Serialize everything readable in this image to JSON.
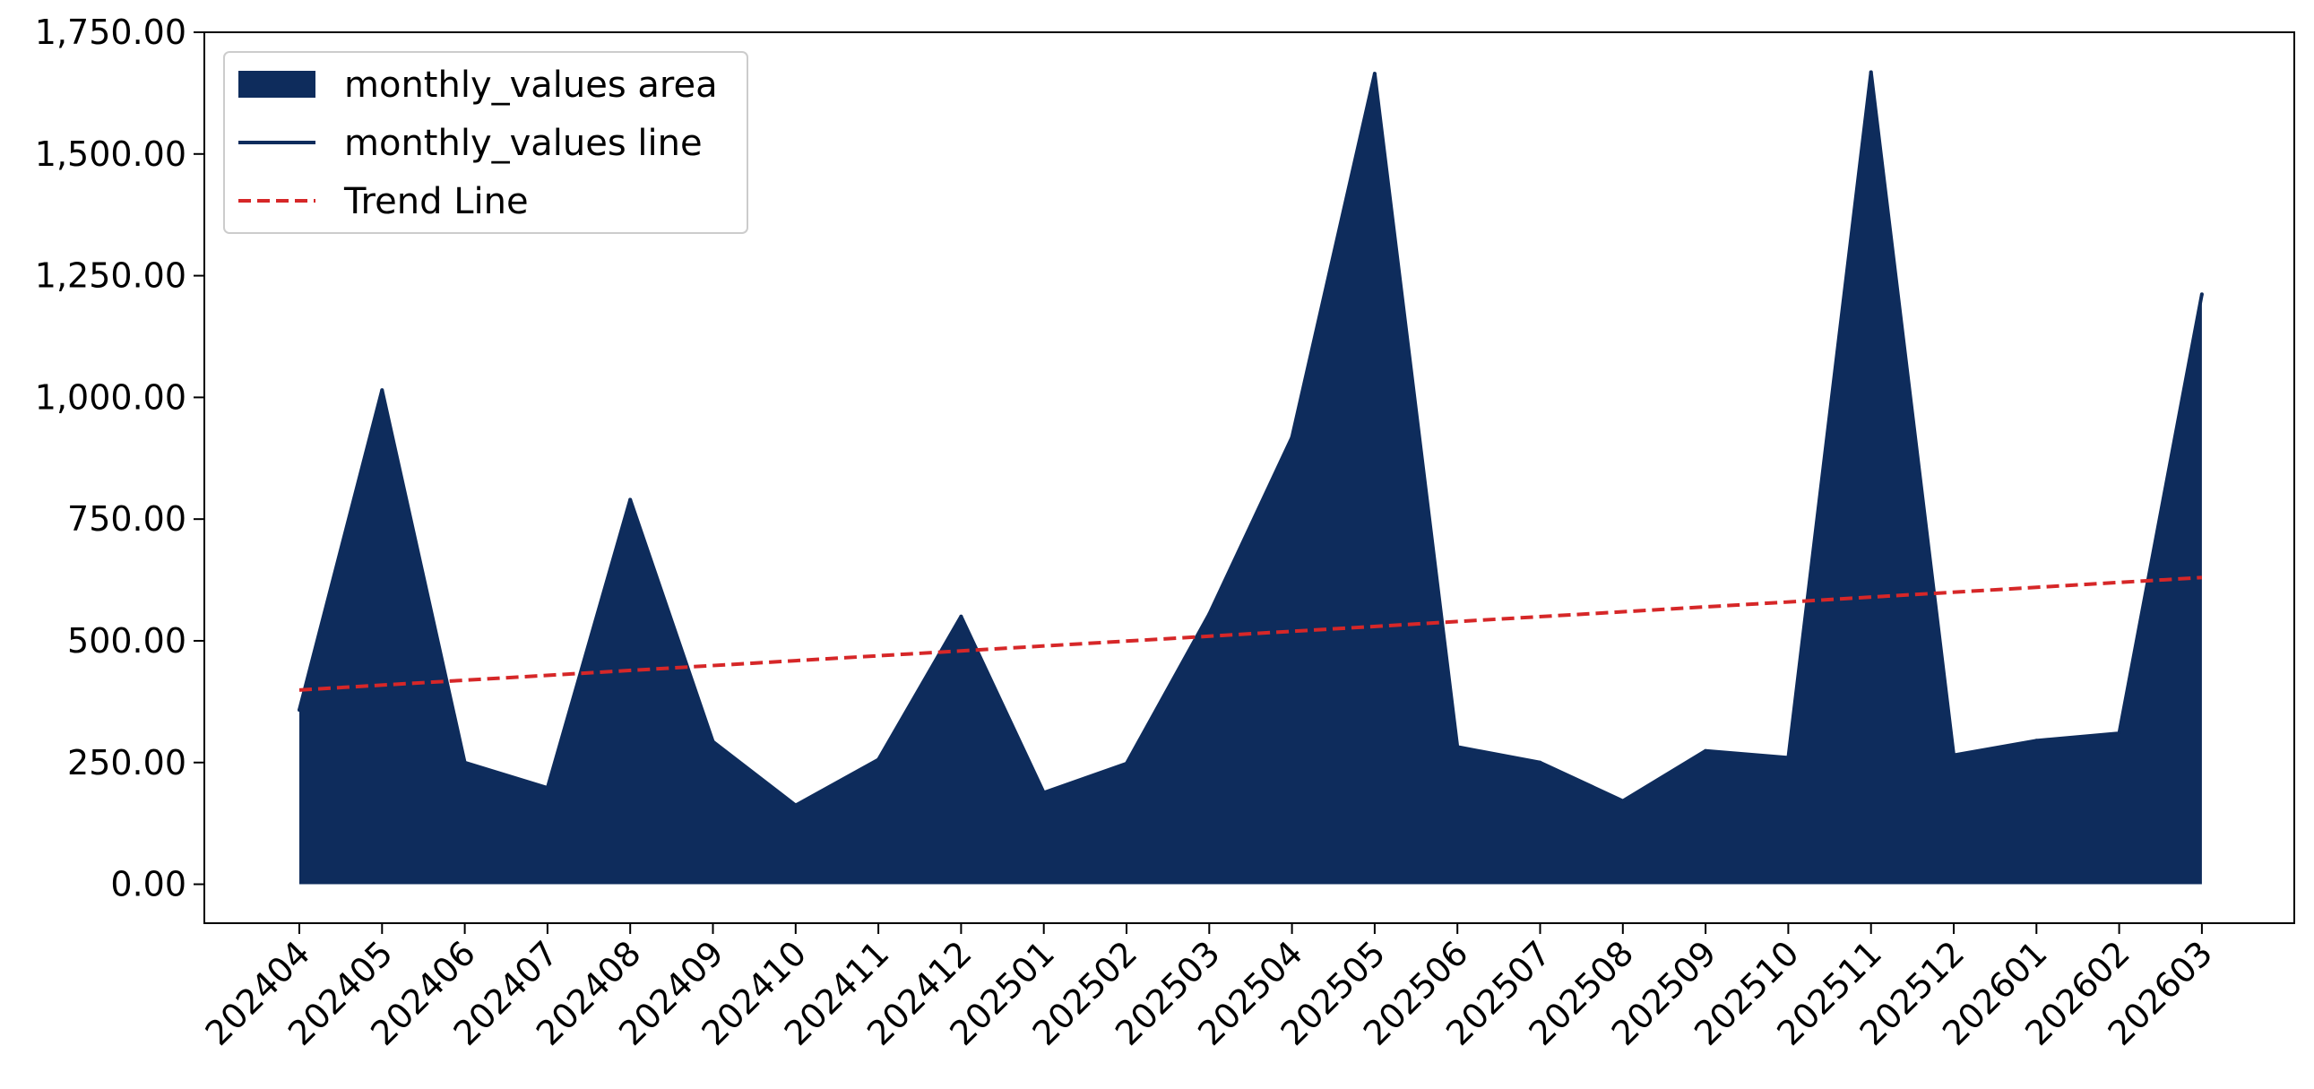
{
  "chart_data": {
    "type": "area",
    "title": "",
    "xlabel": "",
    "ylabel": "",
    "categories": [
      "202404",
      "202405",
      "202406",
      "202407",
      "202408",
      "202409",
      "202410",
      "202411",
      "202412",
      "202501",
      "202502",
      "202503",
      "202504",
      "202505",
      "202506",
      "202507",
      "202508",
      "202509",
      "202510",
      "202511",
      "202512",
      "202601",
      "202602",
      "202603"
    ],
    "series": [
      {
        "name": "monthly_values area",
        "kind": "area",
        "color": "#0e2c5c",
        "values": [
          358,
          1015,
          250,
          198,
          790,
          293,
          162,
          256,
          550,
          188,
          248,
          555,
          918,
          1665,
          282,
          250,
          171,
          274,
          260,
          1668,
          265,
          295,
          310,
          1212
        ]
      },
      {
        "name": "monthly_values line",
        "kind": "line",
        "color": "#0e2c5c",
        "values": [
          358,
          1015,
          250,
          198,
          790,
          293,
          162,
          256,
          550,
          188,
          248,
          555,
          918,
          1665,
          282,
          250,
          171,
          274,
          260,
          1668,
          265,
          295,
          310,
          1212
        ]
      },
      {
        "name": "Trend Line",
        "kind": "trend",
        "color": "#d62728",
        "start": 399,
        "end": 630
      }
    ],
    "ylim": [
      -80,
      1750
    ],
    "yticks": [
      0,
      250,
      500,
      750,
      1000,
      1250,
      1500,
      1750
    ],
    "ytick_labels": [
      "0.00",
      "250.00",
      "500.00",
      "750.00",
      "1,000.00",
      "1,250.00",
      "1,500.00",
      "1,750.00"
    ],
    "grid": false,
    "legend_position": "top-left"
  }
}
